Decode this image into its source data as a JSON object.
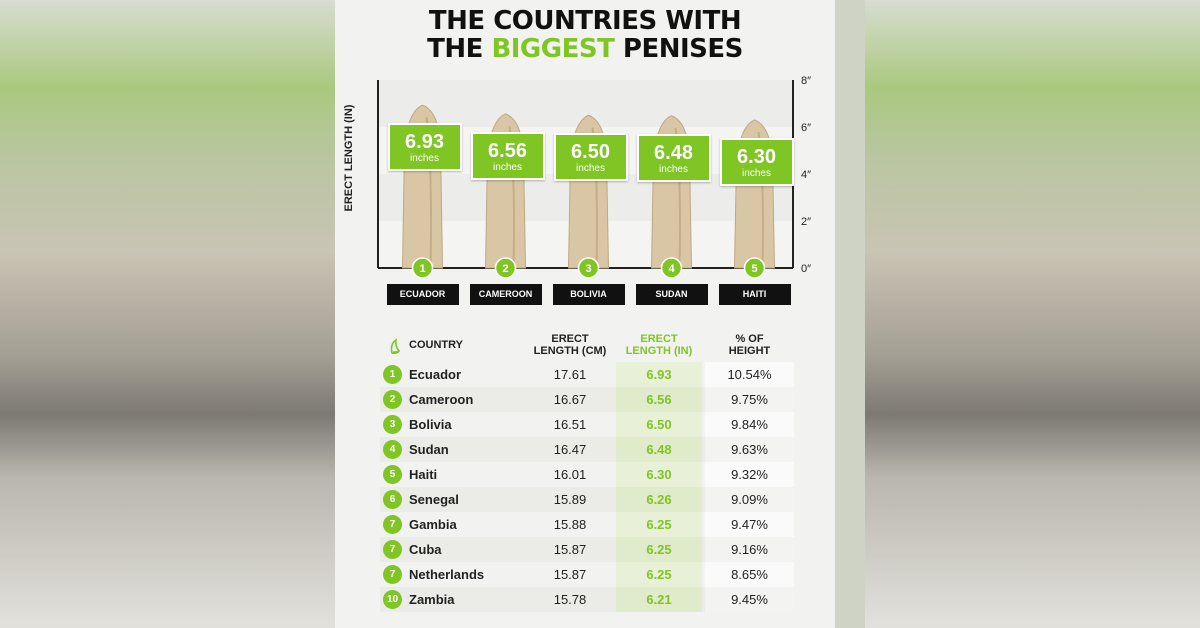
{
  "title": {
    "line1": "THE COUNTRIES WITH",
    "line2_pre": "THE ",
    "line2_highlight": "BIGGEST",
    "line2_post": " PENISES"
  },
  "colors": {
    "accent": "#7fc524",
    "dark": "#111111"
  },
  "chart_data": {
    "type": "bar",
    "ylabel": "ERECT LENGTH (IN)",
    "ylim": [
      0,
      8
    ],
    "yticks": [
      "0″",
      "2″",
      "4″",
      "6″",
      "8″"
    ],
    "y_axis_side": "right",
    "unit_label": "inches",
    "categories": [
      "ECUADOR",
      "CAMEROON",
      "BOLIVIA",
      "SUDAN",
      "HAITI"
    ],
    "ranks": [
      "1",
      "2",
      "3",
      "4",
      "5"
    ],
    "values": [
      6.93,
      6.56,
      6.5,
      6.48,
      6.3
    ],
    "value_labels": [
      "6.93",
      "6.56",
      "6.50",
      "6.48",
      "6.30"
    ]
  },
  "table": {
    "headers": {
      "country": "COUNTRY",
      "cm_line1": "ERECT",
      "cm_line2": "LENGTH (CM)",
      "in_line1": "ERECT",
      "in_line2": "LENGTH (IN)",
      "pct_line1": "% OF",
      "pct_line2": "HEIGHT"
    },
    "rows": [
      {
        "rank": "1",
        "country": "Ecuador",
        "cm": "17.61",
        "in": "6.93",
        "pct": "10.54%"
      },
      {
        "rank": "2",
        "country": "Cameroon",
        "cm": "16.67",
        "in": "6.56",
        "pct": "9.75%"
      },
      {
        "rank": "3",
        "country": "Bolivia",
        "cm": "16.51",
        "in": "6.50",
        "pct": "9.84%"
      },
      {
        "rank": "4",
        "country": "Sudan",
        "cm": "16.47",
        "in": "6.48",
        "pct": "9.63%"
      },
      {
        "rank": "5",
        "country": "Haiti",
        "cm": "16.01",
        "in": "6.30",
        "pct": "9.32%"
      },
      {
        "rank": "6",
        "country": "Senegal",
        "cm": "15.89",
        "in": "6.26",
        "pct": "9.09%"
      },
      {
        "rank": "7",
        "country": "Gambia",
        "cm": "15.88",
        "in": "6.25",
        "pct": "9.47%"
      },
      {
        "rank": "7",
        "country": "Cuba",
        "cm": "15.87",
        "in": "6.25",
        "pct": "9.16%"
      },
      {
        "rank": "7",
        "country": "Netherlands",
        "cm": "15.87",
        "in": "6.25",
        "pct": "8.65%"
      },
      {
        "rank": "10",
        "country": "Zambia",
        "cm": "15.78",
        "in": "6.21",
        "pct": "9.45%"
      }
    ]
  }
}
